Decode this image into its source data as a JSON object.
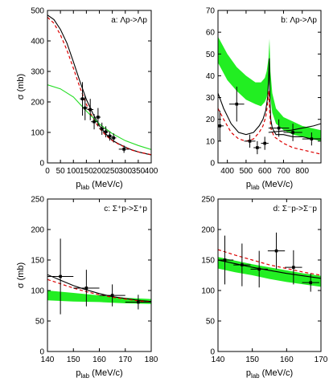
{
  "chart_data": [
    {
      "type": "line",
      "panel": "a",
      "title": "a: Λp->Λp",
      "xlabel_main": "p",
      "xlabel_sub": "lab",
      "xlabel_unit": " (MeV/c)",
      "ylabel": "σ (mb)",
      "xlim": [
        0,
        400
      ],
      "ylim": [
        0,
        500
      ],
      "xticks": [
        0,
        50,
        100,
        150,
        200,
        250,
        300,
        350,
        400
      ],
      "yticks": [
        0,
        100,
        200,
        300,
        400,
        500
      ],
      "series": [
        {
          "style": "black-solid",
          "x": [
            0,
            25,
            50,
            75,
            100,
            125,
            150,
            175,
            200,
            225,
            250,
            275,
            300,
            325,
            350,
            400
          ],
          "y": [
            485,
            470,
            438,
            393,
            331,
            268,
            208,
            162,
            122,
            95,
            74,
            62,
            52,
            43,
            36,
            26
          ]
        },
        {
          "style": "red-dashed",
          "x": [
            0,
            25,
            50,
            75,
            100,
            125,
            150,
            175,
            200,
            225,
            250,
            275,
            300,
            325,
            350,
            400
          ],
          "y": [
            478,
            458,
            420,
            370,
            310,
            248,
            192,
            148,
            114,
            90,
            73,
            61,
            51,
            42,
            36,
            27
          ]
        },
        {
          "style": "green-solid",
          "x": [
            0,
            50,
            100,
            150,
            200,
            250,
            300,
            350,
            400
          ],
          "y": [
            256,
            243,
            216,
            170,
            128,
            96,
            73,
            57,
            44
          ]
        }
      ],
      "points": [
        {
          "x": 135,
          "y": 210,
          "xerr": 10,
          "yerr": 55
        },
        {
          "x": 145,
          "y": 180,
          "xerr": 10,
          "yerr": 40
        },
        {
          "x": 165,
          "y": 175,
          "xerr": 12,
          "yerr": 35
        },
        {
          "x": 180,
          "y": 135,
          "xerr": 12,
          "yerr": 25
        },
        {
          "x": 195,
          "y": 150,
          "xerr": 10,
          "yerr": 30
        },
        {
          "x": 210,
          "y": 112,
          "xerr": 10,
          "yerr": 20
        },
        {
          "x": 225,
          "y": 102,
          "xerr": 10,
          "yerr": 18
        },
        {
          "x": 240,
          "y": 88,
          "xerr": 10,
          "yerr": 15
        },
        {
          "x": 255,
          "y": 82,
          "xerr": 10,
          "yerr": 15
        },
        {
          "x": 295,
          "y": 45,
          "xerr": 20,
          "yerr": 12
        }
      ]
    },
    {
      "type": "line",
      "panel": "b",
      "title": "b: Λp->Λp",
      "xlabel_main": "p",
      "xlabel_sub": "lab",
      "xlabel_unit": " (MeV/c)",
      "ylabel": "",
      "xlim": [
        350,
        900
      ],
      "ylim": [
        0,
        70
      ],
      "xticks": [
        400,
        500,
        600,
        700,
        800
      ],
      "yticks": [
        0,
        10,
        20,
        30,
        40,
        50,
        60,
        70
      ],
      "band": {
        "x": [
          350,
          400,
          450,
          500,
          550,
          580,
          600,
          610,
          620,
          625,
          630,
          640,
          660,
          700,
          750,
          800,
          850,
          900
        ],
        "lower": [
          46,
          38,
          33,
          29,
          27,
          26,
          28,
          30,
          34,
          38,
          30,
          23,
          18,
          15,
          13,
          12,
          11,
          10
        ],
        "upper": [
          58,
          50,
          44,
          40,
          37,
          37,
          39,
          42,
          48,
          57,
          42,
          32,
          25,
          21,
          19,
          17,
          16,
          15
        ]
      },
      "series": [
        {
          "style": "black-solid",
          "x": [
            350,
            380,
            420,
            460,
            500,
            540,
            570,
            590,
            605,
            615,
            620,
            624,
            628,
            632,
            640,
            660,
            700,
            750,
            800,
            850,
            900
          ],
          "y": [
            32,
            25,
            18,
            14,
            13,
            14,
            17,
            20,
            24,
            30,
            38,
            48,
            28,
            20,
            16,
            13,
            13,
            12,
            12,
            11,
            11
          ]
        },
        {
          "style": "red-dashed",
          "x": [
            350,
            380,
            420,
            460,
            500,
            540,
            570,
            590,
            605,
            615,
            622,
            626,
            632,
            650,
            700,
            750,
            800,
            850,
            900
          ],
          "y": [
            25,
            20,
            14,
            11,
            10,
            11,
            14,
            17,
            21,
            27,
            33,
            24,
            16,
            12,
            9,
            7,
            6,
            5,
            4
          ]
        },
        {
          "style": "black-solid",
          "x": [
            620,
            680,
            740,
            800,
            860,
            900
          ],
          "y": [
            14,
            14.5,
            15,
            16,
            17,
            18
          ]
        }
      ],
      "points": [
        {
          "x": 360,
          "y": 17,
          "xerr": 20,
          "yerr": 7
        },
        {
          "x": 450,
          "y": 27,
          "xerr": 40,
          "yerr": 8
        },
        {
          "x": 520,
          "y": 10,
          "xerr": 30,
          "yerr": 3
        },
        {
          "x": 560,
          "y": 7,
          "xerr": 20,
          "yerr": 3
        },
        {
          "x": 600,
          "y": 9,
          "xerr": 20,
          "yerr": 3
        },
        {
          "x": 675,
          "y": 16,
          "xerr": 55,
          "yerr": 4
        },
        {
          "x": 750,
          "y": 14,
          "xerr": 50,
          "yerr": 4
        },
        {
          "x": 850,
          "y": 11,
          "xerr": 50,
          "yerr": 3
        }
      ]
    },
    {
      "type": "line",
      "panel": "c",
      "title": "c: Σ⁺p->Σ⁺p",
      "xlabel_main": "p",
      "xlabel_sub": "lab",
      "xlabel_unit": " (MeV/c)",
      "ylabel": "σ (mb)",
      "xlim": [
        140,
        180
      ],
      "ylim": [
        0,
        250
      ],
      "xticks": [
        140,
        150,
        160,
        170,
        180
      ],
      "yticks": [
        0,
        50,
        100,
        150,
        200,
        250
      ],
      "band": {
        "x": [
          140,
          150,
          160,
          170,
          180
        ],
        "lower": [
          84,
          82,
          81,
          79,
          78
        ],
        "upper": [
          100,
          96,
          92,
          88,
          86
        ]
      },
      "series": [
        {
          "style": "black-solid",
          "x": [
            140,
            145,
            150,
            155,
            160,
            165,
            170,
            175,
            180
          ],
          "y": [
            126,
            117,
            108,
            101,
            95,
            90,
            87,
            84,
            82
          ]
        },
        {
          "style": "red-dashed",
          "x": [
            140,
            145,
            150,
            155,
            160,
            165,
            170,
            175,
            180
          ],
          "y": [
            118,
            111,
            104,
            98,
            93,
            89,
            86,
            83,
            81
          ]
        }
      ],
      "points": [
        {
          "x": 145,
          "y": 123,
          "xerr": 5,
          "yerr": 62
        },
        {
          "x": 155,
          "y": 104,
          "xerr": 5,
          "yerr": 30
        },
        {
          "x": 165,
          "y": 92,
          "xerr": 5,
          "yerr": 18
        },
        {
          "x": 175,
          "y": 81,
          "xerr": 5,
          "yerr": 12
        }
      ]
    },
    {
      "type": "line",
      "panel": "d",
      "title": "d: Σ⁻p->Σ⁻p",
      "xlabel_main": "p",
      "xlabel_sub": "lab",
      "xlabel_unit": " (MeV/c)",
      "ylabel": "",
      "xlim": [
        140,
        170
      ],
      "ylim": [
        0,
        250
      ],
      "xticks": [
        140,
        150,
        160,
        170
      ],
      "yticks": [
        0,
        50,
        100,
        150,
        200,
        250
      ],
      "band": {
        "x": [
          140,
          145,
          150,
          155,
          160,
          165,
          170
        ],
        "lower": [
          136,
          130,
          125,
          119,
          114,
          110,
          106
        ],
        "upper": [
          155,
          149,
          143,
          138,
          133,
          128,
          124
        ]
      },
      "series": [
        {
          "style": "black-solid",
          "x": [
            140,
            145,
            150,
            155,
            160,
            165,
            170
          ],
          "y": [
            150,
            144,
            138,
            133,
            128,
            124,
            120
          ]
        },
        {
          "style": "red-dashed",
          "x": [
            140,
            145,
            150,
            155,
            160,
            165,
            170
          ],
          "y": [
            167,
            158,
            150,
            142,
            136,
            130,
            125
          ]
        }
      ],
      "points": [
        {
          "x": 142,
          "y": 150,
          "xerr": 2.5,
          "yerr": 40
        },
        {
          "x": 147,
          "y": 142,
          "xerr": 2.5,
          "yerr": 35
        },
        {
          "x": 152,
          "y": 135,
          "xerr": 2.5,
          "yerr": 30
        },
        {
          "x": 157,
          "y": 165,
          "xerr": 2.5,
          "yerr": 30
        },
        {
          "x": 162,
          "y": 138,
          "xerr": 2.5,
          "yerr": 28
        },
        {
          "x": 167,
          "y": 113,
          "xerr": 2.5,
          "yerr": 15
        }
      ]
    }
  ]
}
